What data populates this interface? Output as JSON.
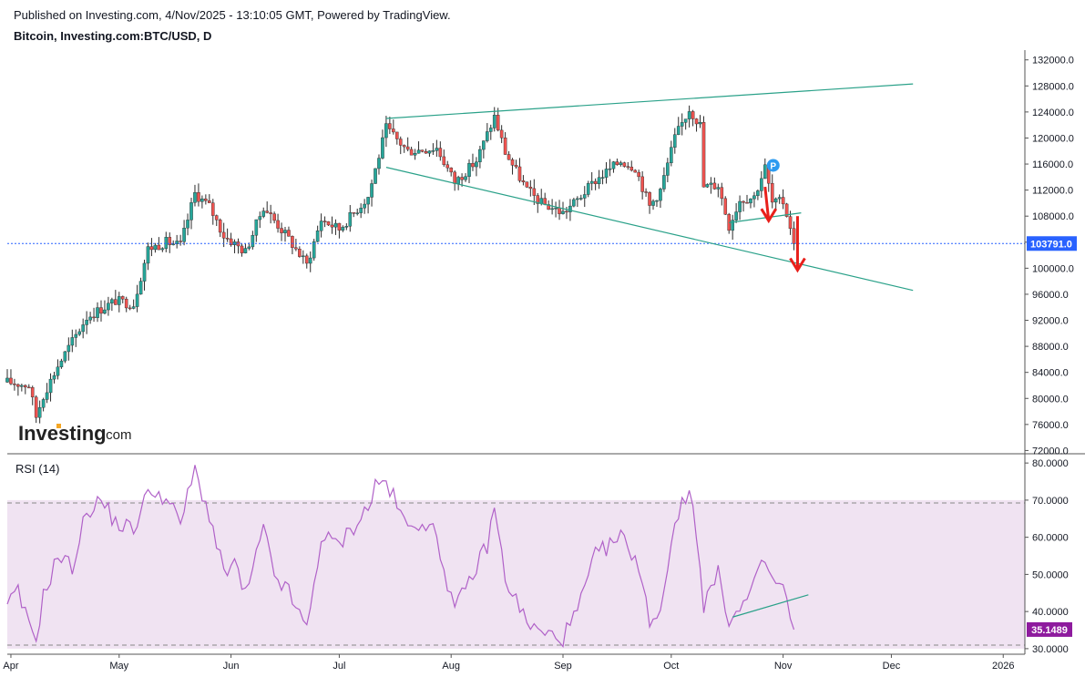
{
  "header": {
    "publisher_line": "Published on Investing.com, 4/Nov/2025 - 13:10:05 GMT, Powered by TradingView.",
    "symbol_line": "Bitcoin, Investing.com:BTC/USD, D"
  },
  "logo": {
    "word": "Investing",
    "suffix": ".com"
  },
  "colors": {
    "up": "#26a69a",
    "down": "#ef5350",
    "wick": "#2b2b2b",
    "trendline": "#2aa189",
    "rsi_line": "#b061c8",
    "rsi_band": "#f0e3f2",
    "arrow": "#e8201b",
    "last_price_bg": "#2962ff",
    "rsi_value_bg": "#8e1b9e",
    "pin": "#2d9bf0"
  },
  "pin_label": "P",
  "chart_data": [
    {
      "type": "candlestick",
      "title": "Bitcoin, Investing.com:BTC/USD, D",
      "x_range": [
        "2025-03-31",
        "2026-01-07"
      ],
      "ylim": [
        71500,
        133500
      ],
      "y_ticks": [
        "132000.0",
        "128000.0",
        "124000.0",
        "120000.0",
        "116000.0",
        "112000.0",
        "108000.0",
        "104000.0",
        "100000.0",
        "96000.0",
        "92000.0",
        "88000.0",
        "84000.0",
        "80000.0",
        "76000.0",
        "72000.0"
      ],
      "x_ticks": [
        "Apr",
        "May",
        "Jun",
        "Jul",
        "Aug",
        "Sep",
        "Oct",
        "Nov",
        "Dec",
        "2026"
      ],
      "last_price": 103791,
      "last_price_label": "103791.0",
      "price_anchors": [
        [
          "2025-03-31",
          82500
        ],
        [
          "2025-04-06",
          82000
        ],
        [
          "2025-04-08",
          77200
        ],
        [
          "2025-04-10",
          80500
        ],
        [
          "2025-04-14",
          85000
        ],
        [
          "2025-04-22",
          92500
        ],
        [
          "2025-04-30",
          95000
        ],
        [
          "2025-05-05",
          94500
        ],
        [
          "2025-05-09",
          103000
        ],
        [
          "2025-05-14",
          104000
        ],
        [
          "2025-05-18",
          103500
        ],
        [
          "2025-05-22",
          111500
        ],
        [
          "2025-05-26",
          109500
        ],
        [
          "2025-05-30",
          105000
        ],
        [
          "2025-06-05",
          102500
        ],
        [
          "2025-06-10",
          109500
        ],
        [
          "2025-06-17",
          104500
        ],
        [
          "2025-06-22",
          100500
        ],
        [
          "2025-06-26",
          107500
        ],
        [
          "2025-07-01",
          106000
        ],
        [
          "2025-07-09",
          111000
        ],
        [
          "2025-07-14",
          121500
        ],
        [
          "2025-07-20",
          118000
        ],
        [
          "2025-07-28",
          118500
        ],
        [
          "2025-08-02",
          113200
        ],
        [
          "2025-08-08",
          116500
        ],
        [
          "2025-08-13",
          123300
        ],
        [
          "2025-08-16",
          117800
        ],
        [
          "2025-08-22",
          112000
        ],
        [
          "2025-08-26",
          110000
        ],
        [
          "2025-09-01",
          108500
        ],
        [
          "2025-09-05",
          110500
        ],
        [
          "2025-09-10",
          113500
        ],
        [
          "2025-09-17",
          116500
        ],
        [
          "2025-09-21",
          115500
        ],
        [
          "2025-09-25",
          109500
        ],
        [
          "2025-09-28",
          112000
        ],
        [
          "2025-10-02",
          120000
        ],
        [
          "2025-10-06",
          124500
        ],
        [
          "2025-10-09",
          122000
        ],
        [
          "2025-10-10",
          112500
        ],
        [
          "2025-10-14",
          112800
        ],
        [
          "2025-10-17",
          106500
        ],
        [
          "2025-10-20",
          110500
        ],
        [
          "2025-10-24",
          111000
        ],
        [
          "2025-10-27",
          115500
        ],
        [
          "2025-10-29",
          110000
        ],
        [
          "2025-11-01",
          110200
        ],
        [
          "2025-11-03",
          106500
        ],
        [
          "2025-11-04",
          103791
        ]
      ],
      "trendlines": [
        {
          "name": "upper-trendline",
          "from": [
            "2025-07-14",
            123000
          ],
          "to": [
            "2025-12-07",
            128300
          ]
        },
        {
          "name": "lower-trendline",
          "from": [
            "2025-07-14",
            115500
          ],
          "to": [
            "2025-12-07",
            96600
          ]
        },
        {
          "name": "flag-line",
          "from": [
            "2025-10-17",
            107000
          ],
          "to": [
            "2025-11-06",
            108500
          ]
        }
      ],
      "annotations": [
        {
          "type": "arrow-down",
          "name": "flag-arrow",
          "from": [
            "2025-10-27",
            112500
          ],
          "to": [
            "2025-10-28",
            107300
          ]
        },
        {
          "type": "arrow-down",
          "name": "target-arrow",
          "from": [
            "2025-11-05",
            108000
          ],
          "to": [
            "2025-11-05",
            99700
          ]
        }
      ]
    },
    {
      "type": "line",
      "title": "RSI (14)",
      "ylim": [
        28.5,
        82
      ],
      "y_ticks": [
        "80.0000",
        "70.0000",
        "60.0000",
        "50.0000",
        "40.0000",
        "30.0000"
      ],
      "band": [
        30,
        70
      ],
      "last_value": 35.1489,
      "last_value_label": "35.1489",
      "rsi_anchors": [
        [
          "2025-03-31",
          42
        ],
        [
          "2025-04-03",
          45
        ],
        [
          "2025-04-06",
          36
        ],
        [
          "2025-04-08",
          33
        ],
        [
          "2025-04-10",
          44
        ],
        [
          "2025-04-14",
          55
        ],
        [
          "2025-04-18",
          52
        ],
        [
          "2025-04-22",
          67
        ],
        [
          "2025-04-26",
          70
        ],
        [
          "2025-04-30",
          64
        ],
        [
          "2025-05-05",
          62
        ],
        [
          "2025-05-08",
          70
        ],
        [
          "2025-05-11",
          73
        ],
        [
          "2025-05-14",
          70
        ],
        [
          "2025-05-18",
          64
        ],
        [
          "2025-05-22",
          78
        ],
        [
          "2025-05-26",
          66
        ],
        [
          "2025-05-30",
          50
        ],
        [
          "2025-06-02",
          53
        ],
        [
          "2025-06-05",
          44
        ],
        [
          "2025-06-10",
          62
        ],
        [
          "2025-06-13",
          50
        ],
        [
          "2025-06-17",
          45
        ],
        [
          "2025-06-22",
          35
        ],
        [
          "2025-06-26",
          60
        ],
        [
          "2025-07-01",
          58
        ],
        [
          "2025-07-09",
          68
        ],
        [
          "2025-07-11",
          74
        ],
        [
          "2025-07-14",
          75
        ],
        [
          "2025-07-20",
          62
        ],
        [
          "2025-07-24",
          65
        ],
        [
          "2025-07-28",
          60
        ],
        [
          "2025-08-02",
          40
        ],
        [
          "2025-08-08",
          52
        ],
        [
          "2025-08-11",
          58
        ],
        [
          "2025-08-13",
          68
        ],
        [
          "2025-08-16",
          49
        ],
        [
          "2025-08-22",
          37
        ],
        [
          "2025-08-26",
          34
        ],
        [
          "2025-09-01",
          33
        ],
        [
          "2025-09-05",
          40
        ],
        [
          "2025-09-10",
          55
        ],
        [
          "2025-09-17",
          60
        ],
        [
          "2025-09-21",
          55
        ],
        [
          "2025-09-25",
          38
        ],
        [
          "2025-09-28",
          40
        ],
        [
          "2025-10-02",
          65
        ],
        [
          "2025-10-05",
          70
        ],
        [
          "2025-10-06",
          73
        ],
        [
          "2025-10-08",
          62
        ],
        [
          "2025-10-10",
          42
        ],
        [
          "2025-10-14",
          50
        ],
        [
          "2025-10-17",
          38
        ],
        [
          "2025-10-20",
          40
        ],
        [
          "2025-10-24",
          47
        ],
        [
          "2025-10-27",
          54
        ],
        [
          "2025-10-29",
          48
        ],
        [
          "2025-11-01",
          47
        ],
        [
          "2025-11-03",
          38
        ],
        [
          "2025-11-04",
          35.15
        ]
      ],
      "trendline": {
        "name": "rsi-trendline",
        "from": [
          "2025-10-18",
          38.5
        ],
        "to": [
          "2025-11-08",
          44.5
        ]
      }
    }
  ]
}
